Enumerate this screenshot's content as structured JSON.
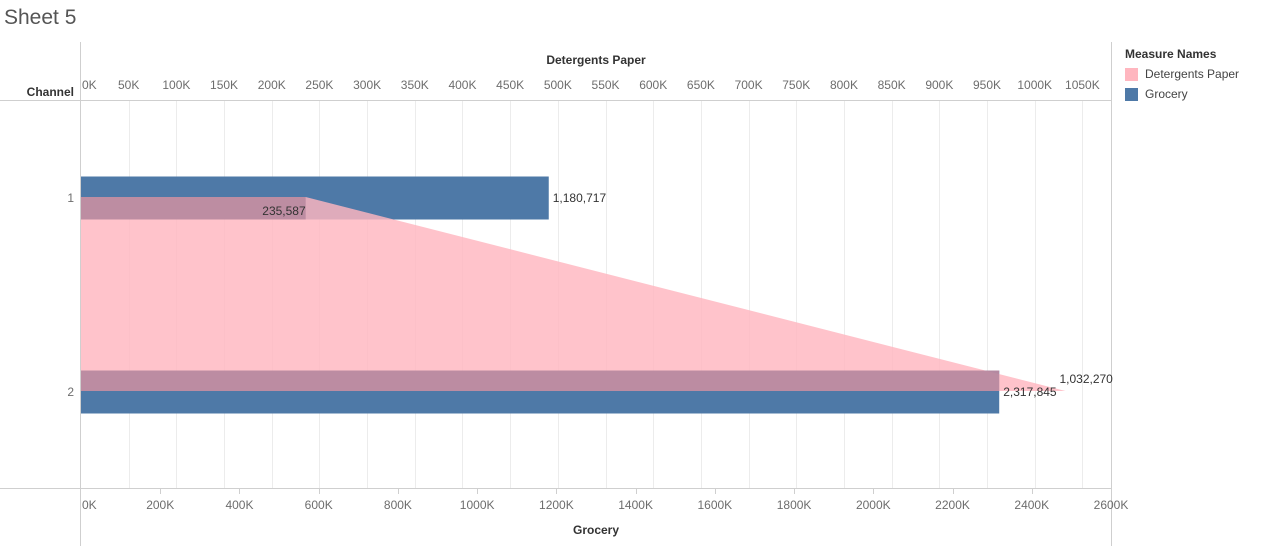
{
  "page": {
    "title": "Sheet 5"
  },
  "colors": {
    "detergents": "#ffb6bf",
    "grocery": "#4e79a7",
    "grid": "#ececec",
    "axis": "#cfcfcf"
  },
  "legend": {
    "title": "Measure Names",
    "items": [
      {
        "label": "Detergents Paper",
        "color": "#ffb6bf"
      },
      {
        "label": "Grocery",
        "color": "#4e79a7"
      }
    ]
  },
  "chart_data": {
    "type": "bar",
    "row_header": "Channel",
    "categories": [
      "1",
      "2"
    ],
    "series": [
      {
        "name": "Grocery",
        "mark": "bar",
        "values": [
          1180717,
          2317845
        ],
        "labels": [
          "1,180,717",
          "2,317,845"
        ],
        "color": "#4e79a7"
      },
      {
        "name": "Detergents Paper",
        "mark": "area",
        "values": [
          235587,
          1032270
        ],
        "labels": [
          "235,587",
          "1,032,270"
        ],
        "color": "#ffb6bf"
      }
    ],
    "top_axis": {
      "title": "Detergents Paper",
      "min": 0,
      "max": 1080000,
      "ticks": [
        0,
        50000,
        100000,
        150000,
        200000,
        250000,
        300000,
        350000,
        400000,
        450000,
        500000,
        550000,
        600000,
        650000,
        700000,
        750000,
        800000,
        850000,
        900000,
        950000,
        1000000,
        1050000
      ],
      "tick_labels": [
        "0K",
        "50K",
        "100K",
        "150K",
        "200K",
        "250K",
        "300K",
        "350K",
        "400K",
        "450K",
        "500K",
        "550K",
        "600K",
        "650K",
        "700K",
        "750K",
        "800K",
        "850K",
        "900K",
        "950K",
        "1000K",
        "1050K"
      ]
    },
    "bottom_axis": {
      "title": "Grocery",
      "min": 0,
      "max": 2600000,
      "ticks": [
        0,
        200000,
        400000,
        600000,
        800000,
        1000000,
        1200000,
        1400000,
        1600000,
        1800000,
        2000000,
        2200000,
        2400000,
        2600000
      ],
      "tick_labels": [
        "0K",
        "200K",
        "400K",
        "600K",
        "800K",
        "1000K",
        "1200K",
        "1400K",
        "1600K",
        "1800K",
        "2000K",
        "2200K",
        "2400K",
        "2600K"
      ]
    },
    "grid": true
  }
}
